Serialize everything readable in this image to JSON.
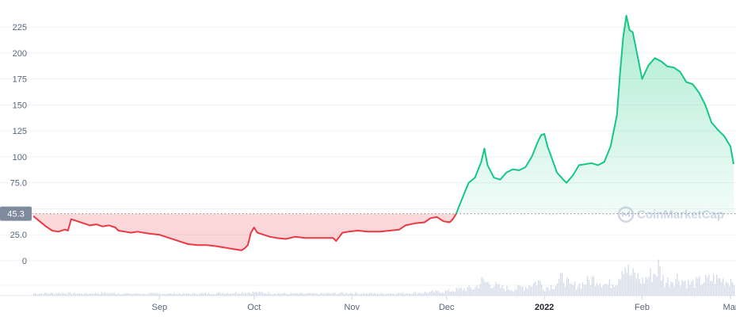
{
  "chart_data": {
    "type": "area",
    "ylim": [
      -30,
      240
    ],
    "y_ticks": [
      0,
      25.0,
      50.0,
      75.0,
      100,
      125,
      150,
      175,
      200,
      225
    ],
    "y_tick_labels": [
      "0",
      "25.0",
      "",
      "75.0",
      "100",
      "125",
      "150",
      "175",
      "200",
      "225"
    ],
    "x_range_days": [
      0,
      222
    ],
    "x_ticks": [
      {
        "label": "Sep",
        "day": 40
      },
      {
        "label": "Oct",
        "day": 70
      },
      {
        "label": "Nov",
        "day": 101
      },
      {
        "label": "Dec",
        "day": 131
      },
      {
        "label": "2022",
        "day": 162,
        "bold": true
      },
      {
        "label": "Feb",
        "day": 193
      },
      {
        "label": "Mar",
        "day": 221
      }
    ],
    "reference": {
      "value": 45.3,
      "label": "45.3"
    },
    "colors": {
      "up": "#16c784",
      "down": "#ea3943",
      "grid": "#eff2f5",
      "volume": "#cfd6e4",
      "ref_bg": "#808a9d"
    },
    "watermark": "CoinMarketCap",
    "price_series": [
      [
        0,
        43
      ],
      [
        2,
        38
      ],
      [
        4,
        33
      ],
      [
        6,
        29
      ],
      [
        8,
        28
      ],
      [
        10,
        30
      ],
      [
        11,
        29
      ],
      [
        12,
        40
      ],
      [
        14,
        38
      ],
      [
        16,
        36
      ],
      [
        18,
        34
      ],
      [
        20,
        35
      ],
      [
        22,
        33
      ],
      [
        24,
        34
      ],
      [
        26,
        32
      ],
      [
        27,
        29
      ],
      [
        29,
        28
      ],
      [
        31,
        27
      ],
      [
        33,
        28
      ],
      [
        35,
        27
      ],
      [
        37,
        26
      ],
      [
        40,
        25
      ],
      [
        43,
        22
      ],
      [
        46,
        19
      ],
      [
        49,
        16
      ],
      [
        52,
        15
      ],
      [
        55,
        15
      ],
      [
        58,
        14
      ],
      [
        60,
        13
      ],
      [
        62,
        12
      ],
      [
        64,
        11
      ],
      [
        66,
        10
      ],
      [
        67,
        12
      ],
      [
        68,
        15
      ],
      [
        69,
        27
      ],
      [
        70,
        32
      ],
      [
        71,
        27
      ],
      [
        73,
        25
      ],
      [
        75,
        23
      ],
      [
        77,
        22
      ],
      [
        80,
        21
      ],
      [
        83,
        23
      ],
      [
        86,
        22
      ],
      [
        89,
        22
      ],
      [
        92,
        22
      ],
      [
        95,
        22
      ],
      [
        96,
        19
      ],
      [
        97,
        23
      ],
      [
        98,
        27
      ],
      [
        100,
        28
      ],
      [
        103,
        29
      ],
      [
        106,
        28
      ],
      [
        110,
        28
      ],
      [
        113,
        29
      ],
      [
        116,
        30
      ],
      [
        118,
        34
      ],
      [
        121,
        36
      ],
      [
        124,
        37
      ],
      [
        126,
        41
      ],
      [
        128,
        42
      ],
      [
        130,
        38
      ],
      [
        132,
        37
      ],
      [
        133,
        40
      ],
      [
        134,
        45
      ],
      [
        136,
        60
      ],
      [
        138,
        75
      ],
      [
        140,
        80
      ],
      [
        142,
        95
      ],
      [
        143,
        108
      ],
      [
        144,
        92
      ],
      [
        146,
        80
      ],
      [
        148,
        78
      ],
      [
        150,
        85
      ],
      [
        152,
        88
      ],
      [
        154,
        87
      ],
      [
        156,
        90
      ],
      [
        158,
        100
      ],
      [
        160,
        115
      ],
      [
        161,
        121
      ],
      [
        162,
        122
      ],
      [
        163,
        110
      ],
      [
        164,
        102
      ],
      [
        166,
        85
      ],
      [
        168,
        78
      ],
      [
        169,
        75
      ],
      [
        171,
        82
      ],
      [
        173,
        92
      ],
      [
        175,
        93
      ],
      [
        177,
        94
      ],
      [
        179,
        92
      ],
      [
        181,
        95
      ],
      [
        183,
        110
      ],
      [
        185,
        140
      ],
      [
        186,
        180
      ],
      [
        187,
        215
      ],
      [
        188,
        236
      ],
      [
        189,
        222
      ],
      [
        190,
        220
      ],
      [
        191,
        205
      ],
      [
        193,
        175
      ],
      [
        195,
        188
      ],
      [
        197,
        195
      ],
      [
        199,
        192
      ],
      [
        201,
        187
      ],
      [
        203,
        186
      ],
      [
        205,
        182
      ],
      [
        207,
        172
      ],
      [
        209,
        170
      ],
      [
        211,
        162
      ],
      [
        213,
        150
      ],
      [
        215,
        133
      ],
      [
        217,
        126
      ],
      [
        219,
        120
      ],
      [
        221,
        110
      ],
      [
        222,
        93
      ]
    ],
    "volume_series": [
      [
        0,
        3
      ],
      [
        8,
        4
      ],
      [
        15,
        3
      ],
      [
        22,
        4
      ],
      [
        30,
        3
      ],
      [
        40,
        3
      ],
      [
        50,
        3
      ],
      [
        60,
        4
      ],
      [
        70,
        5
      ],
      [
        80,
        3
      ],
      [
        90,
        3
      ],
      [
        100,
        4
      ],
      [
        110,
        3
      ],
      [
        120,
        4
      ],
      [
        130,
        6
      ],
      [
        136,
        10
      ],
      [
        140,
        12
      ],
      [
        142,
        22
      ],
      [
        145,
        18
      ],
      [
        148,
        12
      ],
      [
        152,
        10
      ],
      [
        156,
        14
      ],
      [
        160,
        22
      ],
      [
        162,
        12
      ],
      [
        165,
        16
      ],
      [
        168,
        28
      ],
      [
        170,
        14
      ],
      [
        174,
        18
      ],
      [
        178,
        26
      ],
      [
        182,
        16
      ],
      [
        185,
        24
      ],
      [
        187,
        52
      ],
      [
        189,
        32
      ],
      [
        191,
        30
      ],
      [
        193,
        22
      ],
      [
        195,
        30
      ],
      [
        197,
        35
      ],
      [
        198,
        44
      ],
      [
        200,
        20
      ],
      [
        204,
        28
      ],
      [
        208,
        18
      ],
      [
        212,
        22
      ],
      [
        216,
        26
      ],
      [
        220,
        22
      ],
      [
        222,
        28
      ]
    ]
  }
}
